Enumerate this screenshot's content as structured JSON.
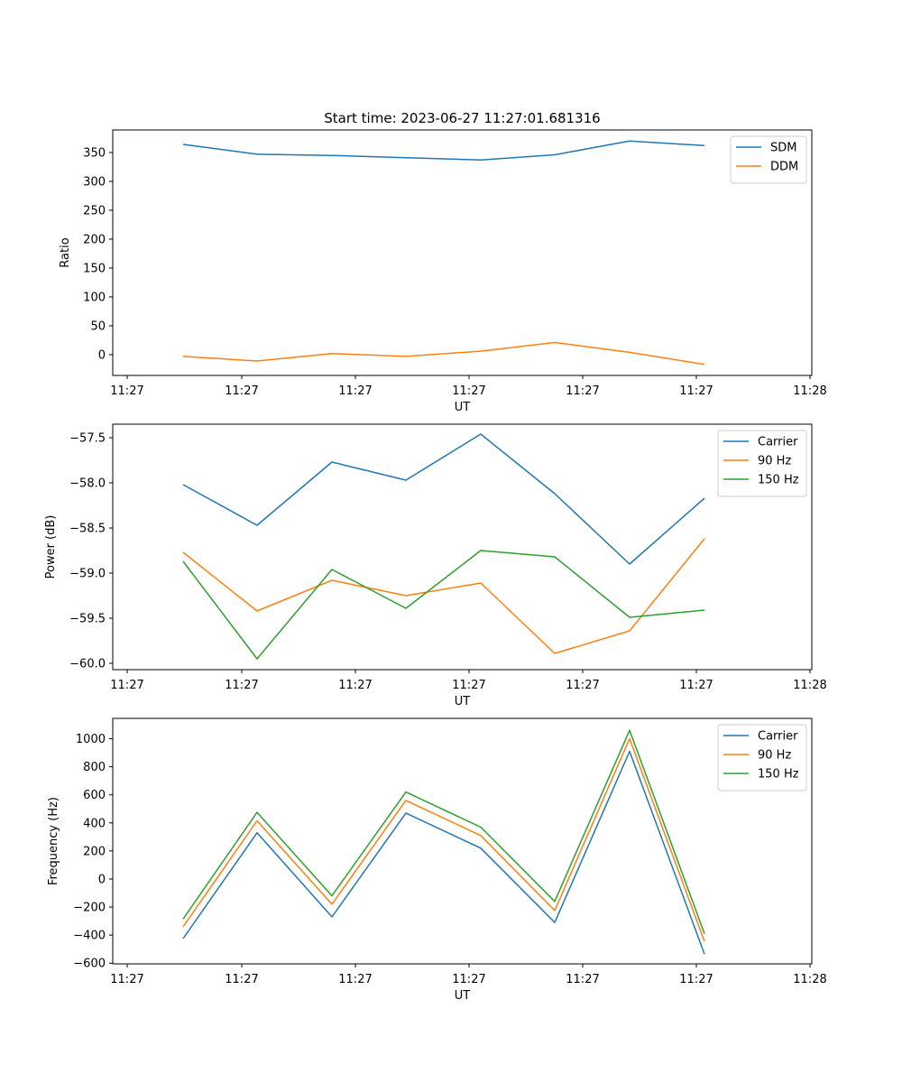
{
  "figure": {
    "title": "Start time: 2023-06-27 11:27:01.681316"
  },
  "chart_data": [
    {
      "type": "line",
      "title": "Start time: 2023-06-27 11:27:01.681316",
      "xlabel": "UT",
      "ylabel": "Ratio",
      "x_tick_labels": [
        "11:27",
        "11:27",
        "11:27",
        "11:27",
        "11:27",
        "11:27",
        "11:28"
      ],
      "y_ticks": [
        0,
        50,
        100,
        150,
        200,
        250,
        300,
        350
      ],
      "ylim": [
        -36,
        389
      ],
      "legend_position": "top-right",
      "series": [
        {
          "name": "SDM",
          "color": "#1f77b4",
          "values": [
            364,
            347,
            345,
            341,
            337,
            346,
            370,
            362
          ]
        },
        {
          "name": "DDM",
          "color": "#ff7f0e",
          "values": [
            -3,
            -11,
            2,
            -3,
            6,
            21,
            4,
            -17
          ]
        }
      ]
    },
    {
      "type": "line",
      "xlabel": "UT",
      "ylabel": "Power (dB)",
      "x_tick_labels": [
        "11:27",
        "11:27",
        "11:27",
        "11:27",
        "11:27",
        "11:27",
        "11:28"
      ],
      "y_ticks": [
        -60.0,
        -59.5,
        -59.0,
        -58.5,
        -58.0,
        -57.5
      ],
      "y_tick_labels": [
        "−60.0",
        "−59.5",
        "−59.0",
        "−58.5",
        "−58.0",
        "−57.5"
      ],
      "ylim": [
        -60.07,
        -57.35
      ],
      "legend_position": "top-right",
      "series": [
        {
          "name": "Carrier",
          "color": "#1f77b4",
          "values": [
            -58.02,
            -58.47,
            -57.77,
            -57.97,
            -57.46,
            -58.12,
            -58.9,
            -58.17
          ]
        },
        {
          "name": "90 Hz",
          "color": "#ff7f0e",
          "values": [
            -58.77,
            -59.42,
            -59.08,
            -59.25,
            -59.11,
            -59.89,
            -59.64,
            -58.62
          ]
        },
        {
          "name": "150 Hz",
          "color": "#2ca02c",
          "values": [
            -58.87,
            -59.95,
            -58.96,
            -59.39,
            -58.75,
            -58.82,
            -59.49,
            -59.41
          ]
        }
      ]
    },
    {
      "type": "line",
      "xlabel": "UT",
      "ylabel": "Frequency (Hz)",
      "x_tick_labels": [
        "11:27",
        "11:27",
        "11:27",
        "11:27",
        "11:27",
        "11:27",
        "11:28"
      ],
      "y_ticks": [
        -600,
        -400,
        -200,
        0,
        200,
        400,
        600,
        800,
        1000
      ],
      "y_tick_labels": [
        "−600",
        "−400",
        "−200",
        "0",
        "200",
        "400",
        "600",
        "800",
        "1000"
      ],
      "ylim": [
        -605,
        1145
      ],
      "legend_position": "top-right",
      "series": [
        {
          "name": "Carrier",
          "color": "#1f77b4",
          "values": [
            -425,
            330,
            -270,
            470,
            220,
            -310,
            910,
            -535
          ]
        },
        {
          "name": "90 Hz",
          "color": "#ff7f0e",
          "values": [
            -340,
            415,
            -180,
            560,
            310,
            -225,
            1000,
            -445
          ]
        },
        {
          "name": "150 Hz",
          "color": "#2ca02c",
          "values": [
            -285,
            475,
            -120,
            620,
            370,
            -160,
            1060,
            -390
          ]
        }
      ]
    }
  ]
}
